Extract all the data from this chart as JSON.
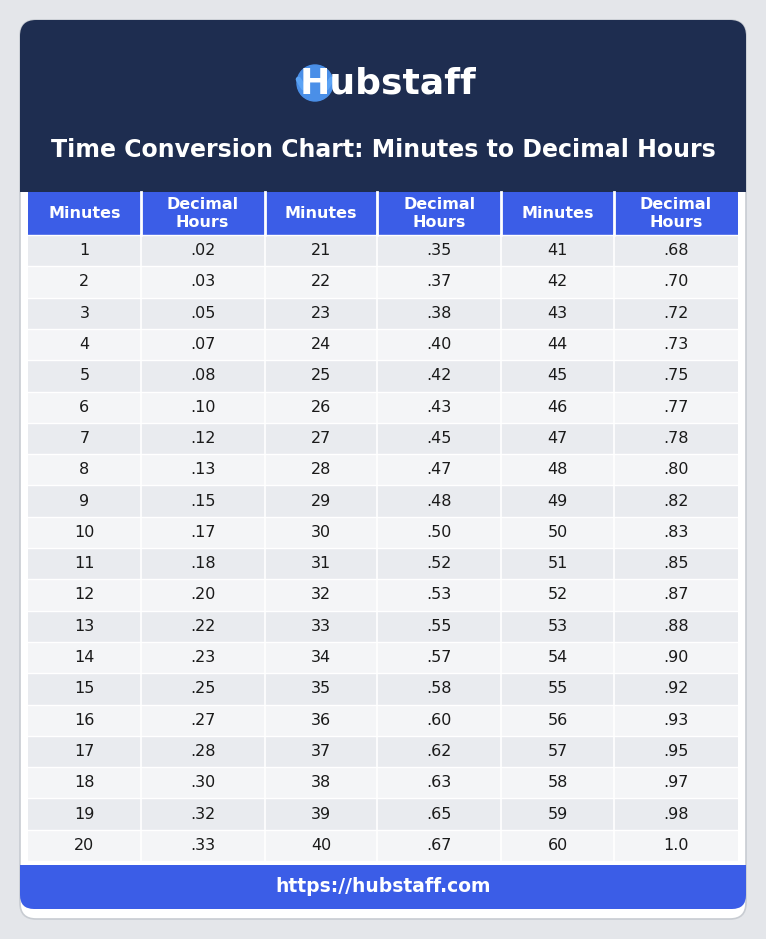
{
  "title": "Time Conversion Chart: Minutes to Decimal Hours",
  "hubstaff_text": "Hubstaff",
  "footer_url": "https://hubstaff.com",
  "header_bg": "#1e2d50",
  "table_header_bg": "#3b5de7",
  "table_header_text": "#ffffff",
  "row_bg_odd": "#e9ebef",
  "row_bg_even": "#f4f5f7",
  "row_text": "#1a1a1a",
  "footer_bg": "#3b5de7",
  "footer_text": "#ffffff",
  "title_text": "#ffffff",
  "outer_bg": "#e4e6ea",
  "card_bg": "#ffffff",
  "col_headers": [
    "Minutes",
    "Decimal\nHours",
    "Minutes",
    "Decimal\nHours",
    "Minutes",
    "Decimal\nHours"
  ],
  "minutes": [
    1,
    2,
    3,
    4,
    5,
    6,
    7,
    8,
    9,
    10,
    11,
    12,
    13,
    14,
    15,
    16,
    17,
    18,
    19,
    20
  ],
  "decimal1": [
    ".02",
    ".03",
    ".05",
    ".07",
    ".08",
    ".10",
    ".12",
    ".13",
    ".15",
    ".17",
    ".18",
    ".20",
    ".22",
    ".23",
    ".25",
    ".27",
    ".28",
    ".30",
    ".32",
    ".33"
  ],
  "minutes2": [
    21,
    22,
    23,
    24,
    25,
    26,
    27,
    28,
    29,
    30,
    31,
    32,
    33,
    34,
    35,
    36,
    37,
    38,
    39,
    40
  ],
  "decimal2": [
    ".35",
    ".37",
    ".38",
    ".40",
    ".42",
    ".43",
    ".45",
    ".47",
    ".48",
    ".50",
    ".52",
    ".53",
    ".55",
    ".57",
    ".58",
    ".60",
    ".62",
    ".63",
    ".65",
    ".67"
  ],
  "minutes3": [
    41,
    42,
    43,
    44,
    45,
    46,
    47,
    48,
    49,
    50,
    51,
    52,
    53,
    54,
    55,
    56,
    57,
    58,
    59,
    60
  ],
  "decimal3": [
    ".68",
    ".70",
    ".72",
    ".73",
    ".75",
    ".77",
    ".78",
    ".80",
    ".82",
    ".83",
    ".85",
    ".87",
    ".88",
    ".90",
    ".92",
    ".93",
    ".95",
    ".97",
    ".98",
    "1.0"
  ]
}
